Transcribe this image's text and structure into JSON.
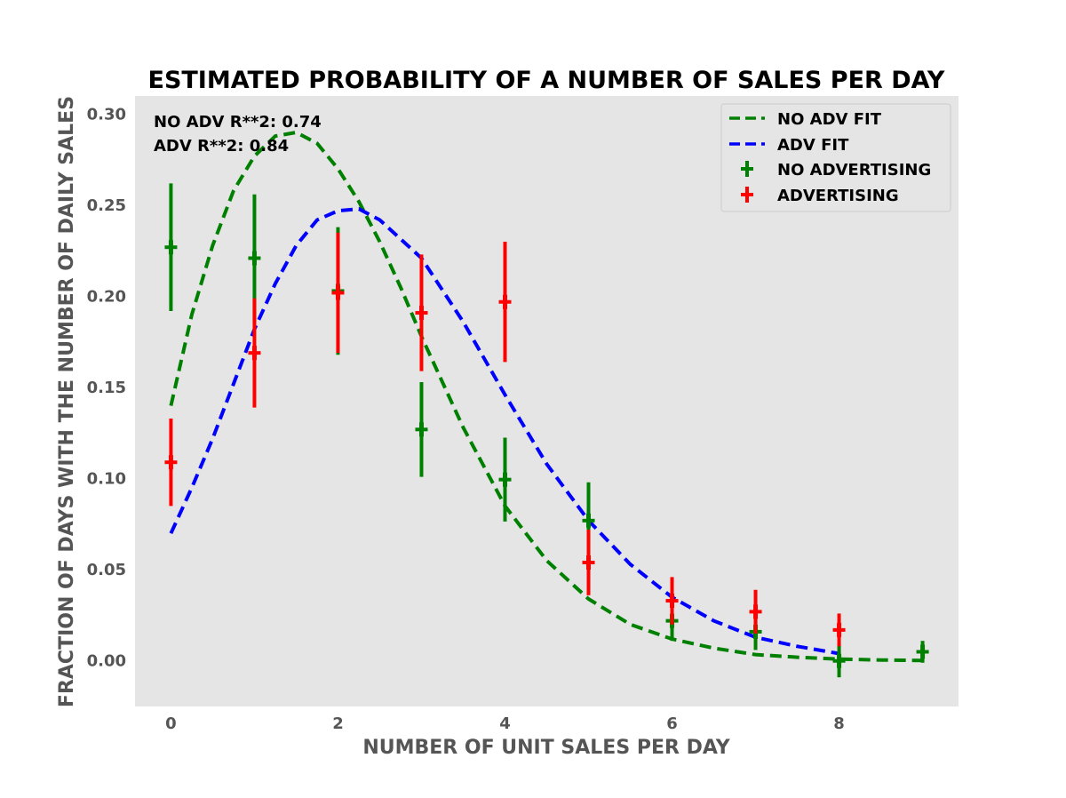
{
  "chart_data": {
    "type": "scatter",
    "title": "ESTIMATED PROBABILITY OF A NUMBER OF SALES PER DAY",
    "xlabel": "NUMBER OF UNIT SALES PER DAY",
    "ylabel": "FRACTION OF DAYS WITH THE NUMBER OF DAILY SALES",
    "xlim": [
      -0.43,
      9.43
    ],
    "ylim": [
      -0.025,
      0.31
    ],
    "xticks": [
      0,
      2,
      4,
      6,
      8
    ],
    "yticks": [
      0.0,
      0.05,
      0.1,
      0.15,
      0.2,
      0.25,
      0.3
    ],
    "ytick_labels": [
      "0.00",
      "0.05",
      "0.10",
      "0.15",
      "0.20",
      "0.25",
      "0.30"
    ],
    "grid": false,
    "legend_position": "top-right",
    "annotations": [
      "NO ADV R**2: 0.74",
      "ADV R**2: 0.84"
    ],
    "series": [
      {
        "name": "NO ADV FIT",
        "kind": "line",
        "color": "#008000",
        "x": [
          0,
          0.25,
          0.5,
          0.75,
          1,
          1.25,
          1.5,
          1.75,
          2,
          2.25,
          2.5,
          2.75,
          3,
          3.5,
          4,
          4.5,
          5,
          5.5,
          6,
          6.5,
          7,
          7.5,
          8,
          8.5,
          9
        ],
        "y": [
          0.14,
          0.19,
          0.228,
          0.258,
          0.277,
          0.288,
          0.29,
          0.284,
          0.27,
          0.252,
          0.23,
          0.205,
          0.178,
          0.128,
          0.085,
          0.055,
          0.034,
          0.02,
          0.012,
          0.007,
          0.0035,
          0.002,
          0.001,
          0.0005,
          0.0002
        ]
      },
      {
        "name": "ADV FIT",
        "kind": "line",
        "color": "#0000ff",
        "x": [
          0,
          0.25,
          0.5,
          0.75,
          1,
          1.25,
          1.5,
          1.75,
          2,
          2.25,
          2.5,
          3,
          3.5,
          4,
          4.5,
          5,
          5.5,
          6,
          6.5,
          7,
          7.5,
          8
        ],
        "y": [
          0.07,
          0.095,
          0.122,
          0.152,
          0.182,
          0.207,
          0.228,
          0.242,
          0.247,
          0.248,
          0.242,
          0.221,
          0.186,
          0.146,
          0.108,
          0.077,
          0.053,
          0.035,
          0.022,
          0.013,
          0.008,
          0.004
        ]
      },
      {
        "name": "NO ADVERTISING",
        "kind": "errorbar",
        "color": "#008000",
        "x": [
          0,
          1,
          2,
          3,
          4,
          5,
          6,
          7,
          8,
          9
        ],
        "y": [
          0.227,
          0.221,
          0.203,
          0.127,
          0.0995,
          0.077,
          0.022,
          0.016,
          0.0,
          0.005
        ],
        "err": [
          0.035,
          0.035,
          0.035,
          0.026,
          0.023,
          0.021,
          0.011,
          0.01,
          0.009,
          0.006
        ]
      },
      {
        "name": "ADVERTISING",
        "kind": "errorbar",
        "color": "#ff0000",
        "x": [
          0,
          1,
          2,
          3,
          4,
          5,
          6,
          7,
          8
        ],
        "y": [
          0.109,
          0.169,
          0.202,
          0.191,
          0.197,
          0.054,
          0.033,
          0.027,
          0.017
        ],
        "err": [
          0.024,
          0.03,
          0.033,
          0.032,
          0.033,
          0.018,
          0.013,
          0.012,
          0.009
        ]
      }
    ]
  }
}
